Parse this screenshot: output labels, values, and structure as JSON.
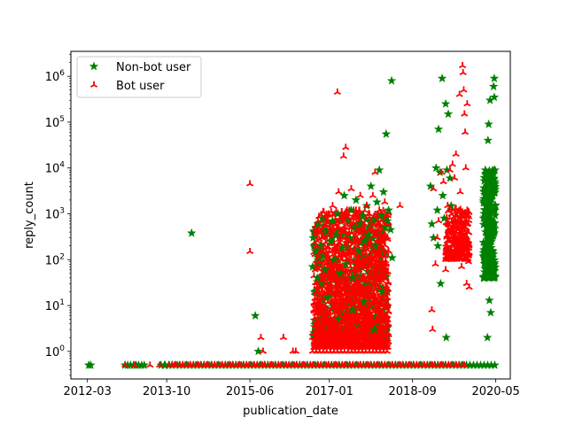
{
  "chart_data": {
    "type": "scatter",
    "title": "",
    "xlabel": "publication_date",
    "ylabel": "reply_count",
    "yscale": "log",
    "xlim": [
      "2011-11-01",
      "2020-08-15"
    ],
    "ylim": [
      0.25,
      3500000
    ],
    "x_ticks": [
      {
        "date": "2012-03-01",
        "label": "2012-03"
      },
      {
        "date": "2013-10-01",
        "label": "2013-10"
      },
      {
        "date": "2015-06-01",
        "label": "2015-06"
      },
      {
        "date": "2017-01-01",
        "label": "2017-01"
      },
      {
        "date": "2018-09-01",
        "label": "2018-09"
      },
      {
        "date": "2020-05-01",
        "label": "2020-05"
      }
    ],
    "y_ticks": [
      {
        "value": 1,
        "base": "10",
        "exp": "0"
      },
      {
        "value": 10,
        "base": "10",
        "exp": "1"
      },
      {
        "value": 100,
        "base": "10",
        "exp": "2"
      },
      {
        "value": 1000,
        "base": "10",
        "exp": "3"
      },
      {
        "value": 10000,
        "base": "10",
        "exp": "4"
      },
      {
        "value": 100000,
        "base": "10",
        "exp": "5"
      },
      {
        "value": 1000000,
        "base": "10",
        "exp": "6"
      }
    ],
    "legend_position": "top-left",
    "series": [
      {
        "name": "Non-bot user",
        "color": "#008000",
        "marker": "star",
        "points": [
          [
            "2012-03-10",
            0.5
          ],
          [
            "2012-03-25",
            0.5
          ],
          [
            "2012-12-01",
            0.5
          ],
          [
            "2012-12-20",
            0.5
          ],
          [
            "2013-01-10",
            0.5
          ],
          [
            "2013-02-01",
            0.5
          ],
          [
            "2013-02-20",
            0.5
          ],
          [
            "2013-03-10",
            0.5
          ],
          [
            "2013-04-01",
            0.5
          ],
          [
            "2013-04-20",
            0.5
          ],
          [
            "2013-08-20",
            0.5
          ],
          [
            "2013-09-15",
            0.5
          ],
          [
            "2014-04-01",
            380
          ],
          [
            "2015-07-10",
            6
          ],
          [
            "2015-08-01",
            1
          ],
          [
            "2016-09-01",
            70
          ],
          [
            "2016-09-05",
            300
          ],
          [
            "2016-09-15",
            20
          ],
          [
            "2016-09-25",
            150
          ],
          [
            "2016-10-05",
            40
          ],
          [
            "2016-10-10",
            600
          ],
          [
            "2016-10-20",
            90
          ],
          [
            "2016-10-28",
            200
          ],
          [
            "2016-11-05",
            30
          ],
          [
            "2016-11-10",
            800
          ],
          [
            "2016-11-20",
            120
          ],
          [
            "2016-12-01",
            60
          ],
          [
            "2016-12-10",
            400
          ],
          [
            "2016-12-20",
            15
          ],
          [
            "2017-01-10",
            250
          ],
          [
            "2017-01-25",
            700
          ],
          [
            "2017-02-05",
            100
          ],
          [
            "2017-02-20",
            350
          ],
          [
            "2017-03-05",
            1000
          ],
          [
            "2017-03-20",
            50
          ],
          [
            "2017-04-05",
            180
          ],
          [
            "2017-04-20",
            2500
          ],
          [
            "2017-05-01",
            80
          ],
          [
            "2017-05-15",
            700
          ],
          [
            "2017-06-01",
            300
          ],
          [
            "2017-06-10",
            1200
          ],
          [
            "2017-06-20",
            40
          ],
          [
            "2017-07-01",
            500
          ],
          [
            "2017-07-15",
            2000
          ],
          [
            "2017-08-01",
            150
          ],
          [
            "2017-08-15",
            600
          ],
          [
            "2017-09-01",
            900
          ],
          [
            "2017-09-15",
            250
          ],
          [
            "2017-10-01",
            1500
          ],
          [
            "2017-10-15",
            350
          ],
          [
            "2017-11-01",
            4000
          ],
          [
            "2017-11-15",
            700
          ],
          [
            "2017-12-01",
            200
          ],
          [
            "2017-12-15",
            1800
          ],
          [
            "2018-01-01",
            9000
          ],
          [
            "2018-01-15",
            900
          ],
          [
            "2018-02-01",
            3000
          ],
          [
            "2018-02-10",
            500
          ],
          [
            "2018-02-20",
            55000
          ],
          [
            "2018-03-01",
            700
          ],
          [
            "2018-03-10",
            1200
          ],
          [
            "2018-04-01",
            800000
          ],
          [
            "2018-04-05",
            110
          ],
          [
            "2018-03-25",
            450
          ],
          [
            "2017-03-15",
            5
          ],
          [
            "2017-06-20",
            8
          ],
          [
            "2017-09-10",
            12
          ],
          [
            "2017-11-25",
            3
          ],
          [
            "2018-01-20",
            20
          ],
          [
            "2019-01-10",
            4000
          ],
          [
            "2019-01-20",
            600
          ],
          [
            "2019-02-01",
            300
          ],
          [
            "2019-02-20",
            10000
          ],
          [
            "2019-03-01",
            1200
          ],
          [
            "2019-03-05",
            200
          ],
          [
            "2019-03-10",
            70000
          ],
          [
            "2019-03-20",
            8000
          ],
          [
            "2019-03-25",
            30
          ],
          [
            "2019-04-05",
            900000
          ],
          [
            "2019-04-10",
            2500
          ],
          [
            "2019-04-20",
            800
          ],
          [
            "2019-05-01",
            250000
          ],
          [
            "2019-05-05",
            2
          ],
          [
            "2019-05-10",
            9000
          ],
          [
            "2019-05-20",
            150000
          ],
          [
            "2019-06-01",
            6000
          ],
          [
            "2019-06-10",
            1500
          ],
          [
            "2020-02-01",
            800
          ],
          [
            "2020-02-05",
            3000
          ],
          [
            "2020-02-10",
            150
          ],
          [
            "2020-02-15",
            9000
          ],
          [
            "2020-02-20",
            60
          ],
          [
            "2020-02-25",
            500
          ],
          [
            "2020-03-01",
            2
          ],
          [
            "2020-03-01",
            1500
          ],
          [
            "2020-03-05",
            40000
          ],
          [
            "2020-03-10",
            300
          ],
          [
            "2020-03-10",
            90000
          ],
          [
            "2020-03-15",
            6000
          ],
          [
            "2020-03-15",
            13
          ],
          [
            "2020-03-20",
            300000
          ],
          [
            "2020-03-20",
            1000
          ],
          [
            "2020-03-25",
            100
          ],
          [
            "2020-03-25",
            7
          ],
          [
            "2020-04-01",
            8000
          ],
          [
            "2020-04-01",
            700
          ],
          [
            "2020-04-05",
            2500
          ],
          [
            "2020-04-10",
            80
          ],
          [
            "2020-04-10",
            5000
          ],
          [
            "2020-04-15",
            600000
          ],
          [
            "2020-04-15",
            40
          ],
          [
            "2020-04-20",
            900000
          ],
          [
            "2020-04-20",
            350000
          ],
          [
            "2020-04-25",
            9000
          ],
          [
            "2020-04-25",
            1200
          ]
        ]
      },
      {
        "name": "Bot user",
        "color": "#ff0000",
        "marker": "tri_up",
        "points": [
          [
            "2012-12-01",
            0.5
          ],
          [
            "2013-02-10",
            0.5
          ],
          [
            "2013-06-01",
            0.5
          ],
          [
            "2013-08-10",
            0.5
          ],
          [
            "2015-06-01",
            4500
          ],
          [
            "2015-06-01",
            150
          ],
          [
            "2015-08-20",
            2
          ],
          [
            "2015-09-05",
            1
          ],
          [
            "2016-02-01",
            2
          ],
          [
            "2016-04-10",
            1
          ],
          [
            "2016-05-01",
            1
          ],
          [
            "2016-09-20",
            60
          ],
          [
            "2016-09-25",
            200
          ],
          [
            "2016-10-01",
            20
          ],
          [
            "2016-10-10",
            700
          ],
          [
            "2016-10-20",
            90
          ],
          [
            "2016-11-01",
            35
          ],
          [
            "2016-11-15",
            300
          ],
          [
            "2016-12-01",
            900
          ],
          [
            "2016-12-10",
            130
          ],
          [
            "2016-12-20",
            50
          ],
          [
            "2017-01-05",
            400
          ],
          [
            "2017-01-15",
            80
          ],
          [
            "2017-01-25",
            1500
          ],
          [
            "2017-02-05",
            220
          ],
          [
            "2017-02-20",
            600
          ],
          [
            "2017-03-01",
            450000
          ],
          [
            "2017-03-10",
            3000
          ],
          [
            "2017-03-25",
            100
          ],
          [
            "2017-04-01",
            30
          ],
          [
            "2017-04-15",
            18000
          ],
          [
            "2017-04-25",
            700
          ],
          [
            "2017-05-01",
            28000
          ],
          [
            "2017-05-10",
            1200
          ],
          [
            "2017-05-20",
            250
          ],
          [
            "2017-06-01",
            500
          ],
          [
            "2017-06-10",
            3500
          ],
          [
            "2017-06-20",
            800
          ],
          [
            "2017-07-01",
            150
          ],
          [
            "2017-07-15",
            1200
          ],
          [
            "2017-08-01",
            400
          ],
          [
            "2017-08-15",
            2500
          ],
          [
            "2017-09-01",
            90
          ],
          [
            "2017-09-15",
            600
          ],
          [
            "2017-10-01",
            1500
          ],
          [
            "2017-10-15",
            200
          ],
          [
            "2017-11-01",
            700
          ],
          [
            "2017-11-15",
            2500
          ],
          [
            "2017-12-01",
            8000
          ],
          [
            "2017-12-15",
            450
          ],
          [
            "2018-01-01",
            1200
          ],
          [
            "2018-01-15",
            700
          ],
          [
            "2018-01-20",
            90
          ],
          [
            "2018-02-01",
            350
          ],
          [
            "2018-02-10",
            1800
          ],
          [
            "2018-02-15",
            600
          ],
          [
            "2017-04-10",
            5
          ],
          [
            "2017-07-10",
            12
          ],
          [
            "2017-10-10",
            4
          ],
          [
            "2018-01-05",
            8
          ],
          [
            "2018-06-01",
            1500
          ],
          [
            "2019-01-20",
            8
          ],
          [
            "2019-01-25",
            3
          ],
          [
            "2019-02-01",
            3500
          ],
          [
            "2019-02-15",
            80
          ],
          [
            "2019-03-01",
            300
          ],
          [
            "2019-03-10",
            700
          ],
          [
            "2019-04-01",
            8000
          ],
          [
            "2019-04-15",
            5000
          ],
          [
            "2019-05-01",
            60
          ],
          [
            "2019-05-15",
            1500
          ],
          [
            "2019-06-01",
            9000
          ],
          [
            "2019-06-15",
            300
          ],
          [
            "2019-07-01",
            700
          ],
          [
            "2019-07-15",
            20000
          ],
          [
            "2019-08-01",
            200
          ],
          [
            "2019-08-10",
            400000
          ],
          [
            "2019-08-15",
            3000
          ],
          [
            "2019-08-20",
            900
          ],
          [
            "2019-09-01",
            1700000
          ],
          [
            "2019-09-05",
            1200000
          ],
          [
            "2019-09-10",
            500000
          ],
          [
            "2019-09-15",
            150000
          ],
          [
            "2019-09-20",
            60000
          ],
          [
            "2019-09-25",
            10000
          ],
          [
            "2019-10-01",
            30
          ],
          [
            "2019-10-05",
            250000
          ],
          [
            "2019-10-10",
            600
          ],
          [
            "2019-10-15",
            90
          ],
          [
            "2019-10-20",
            25
          ],
          [
            "2019-06-20",
            12000
          ],
          [
            "2019-07-05",
            6000
          ],
          [
            "2019-07-25",
            900
          ],
          [
            "2019-08-25",
            70
          ]
        ]
      }
    ]
  }
}
